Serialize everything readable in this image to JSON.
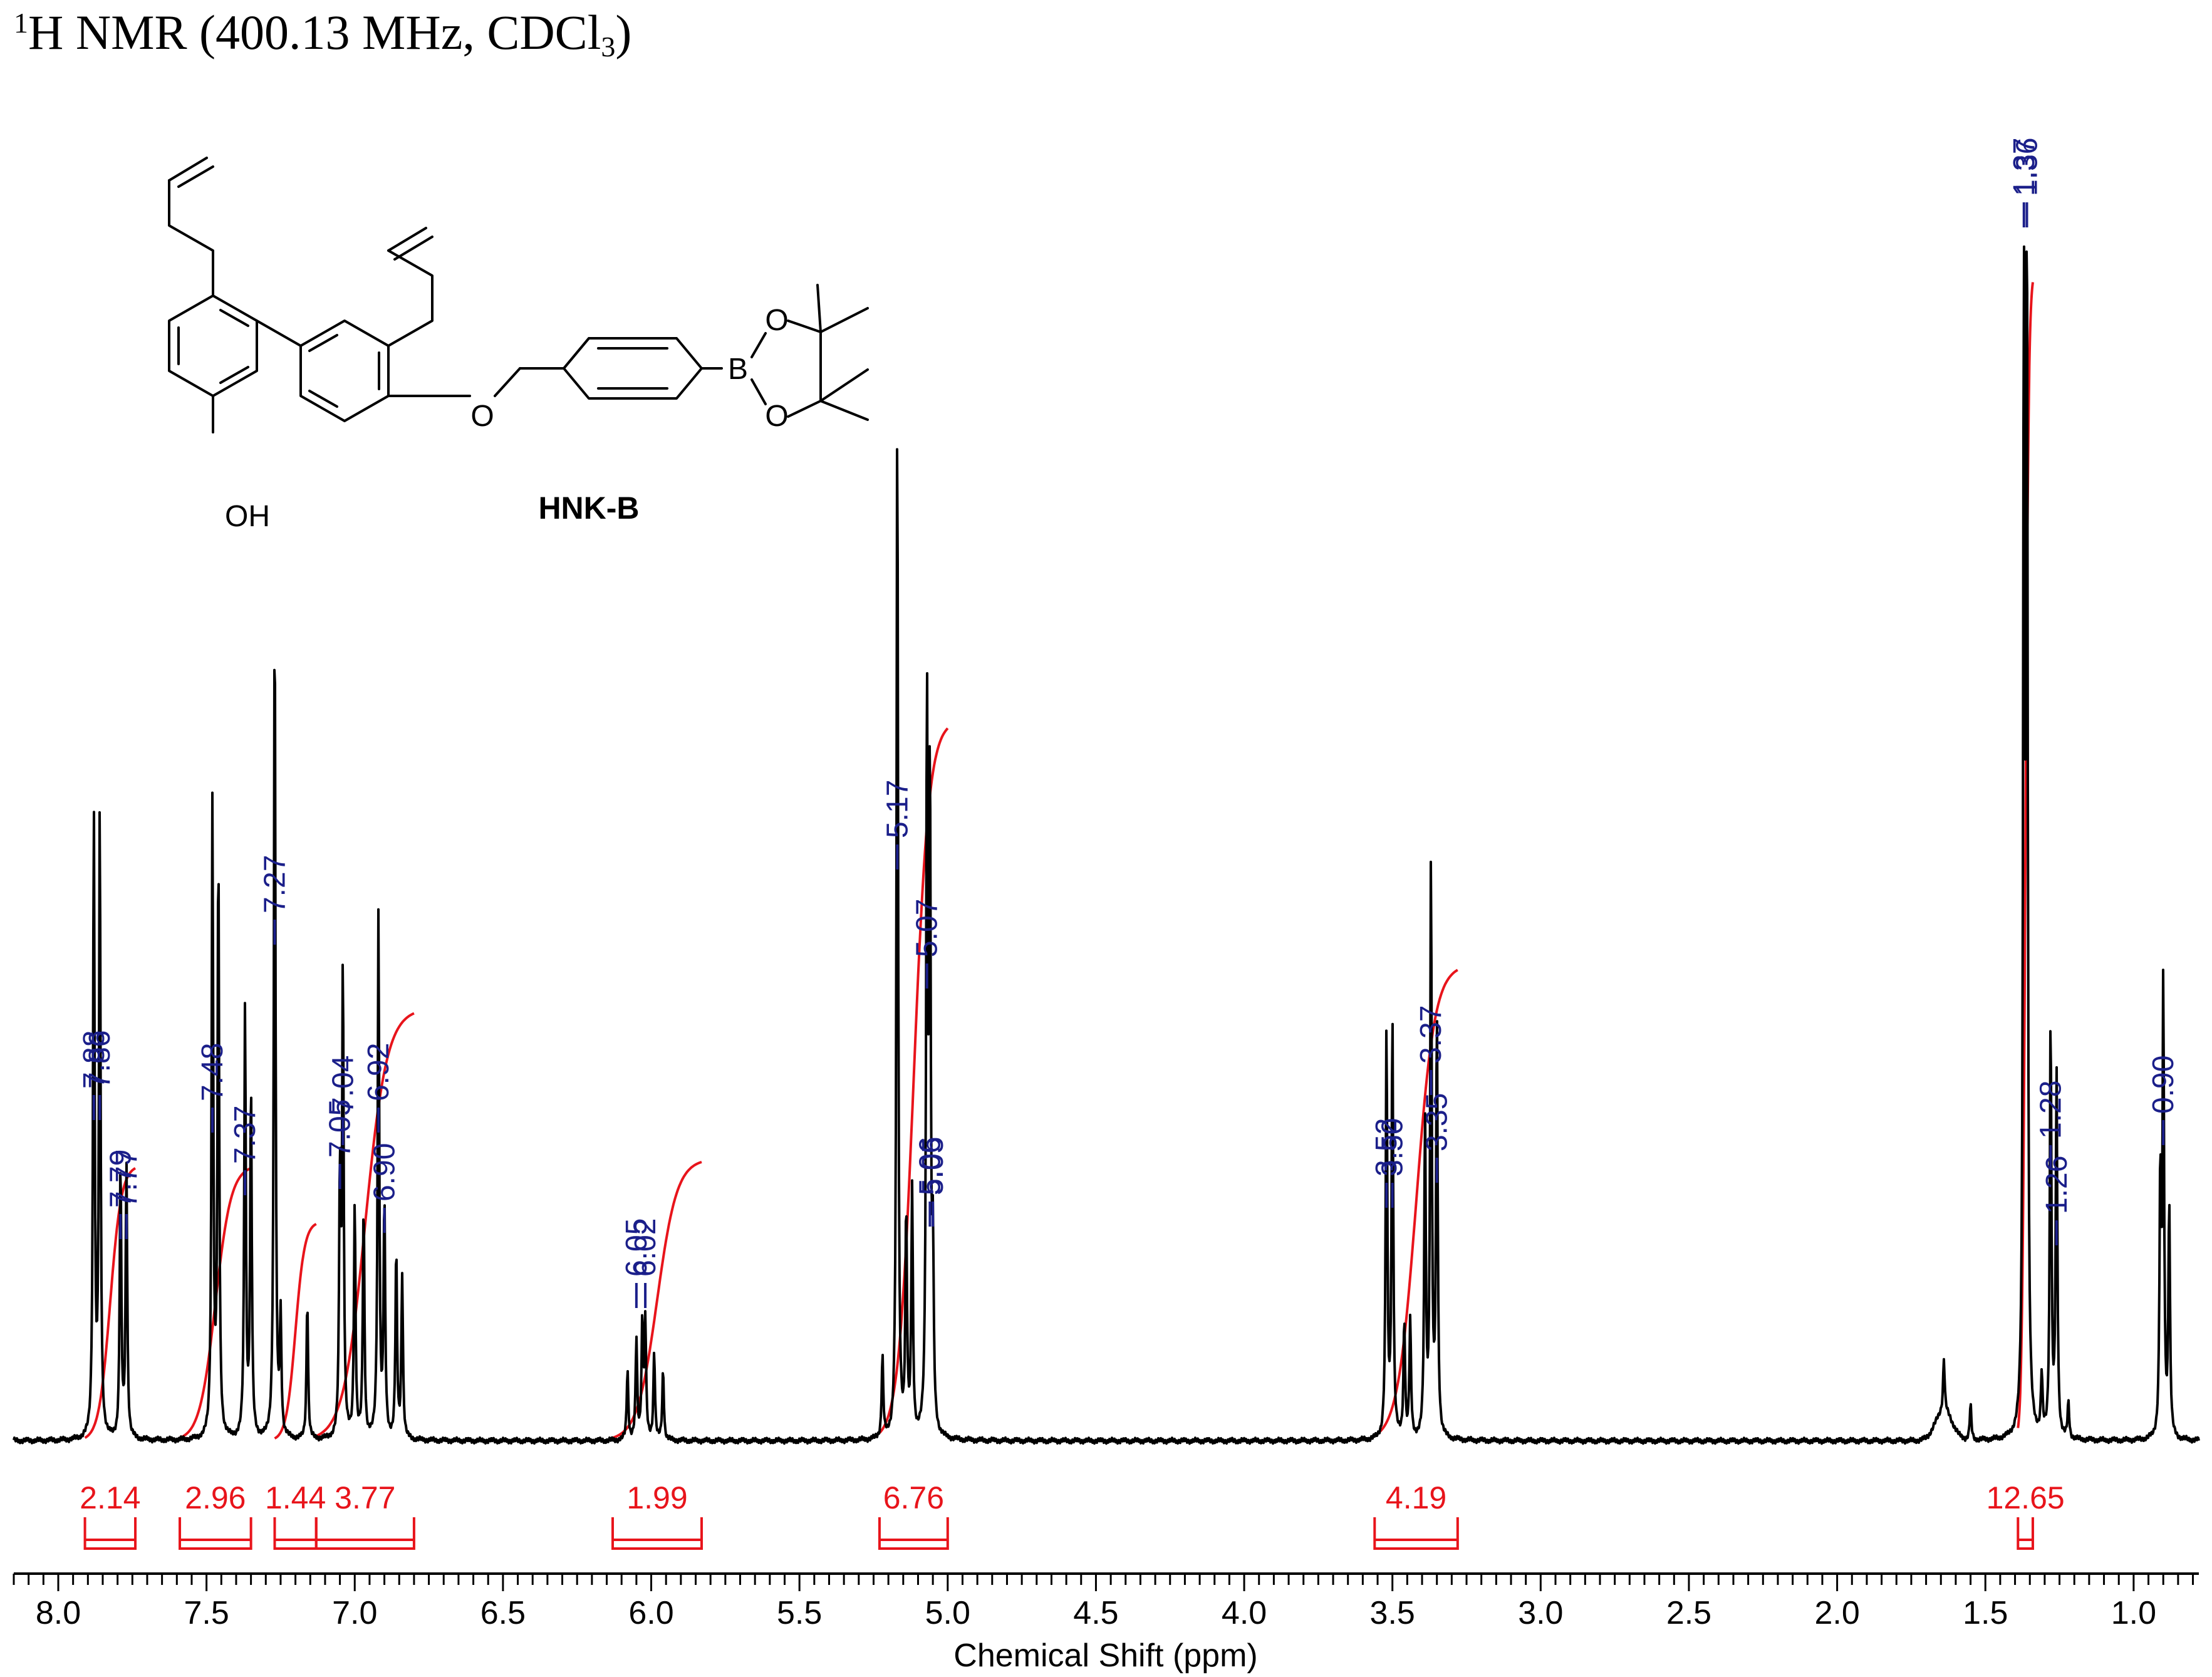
{
  "chart_data": {
    "type": "line",
    "title_parts": {
      "sup_1": "1",
      "main": "H NMR (400.13 MHz, CDCl",
      "sub_3": "3",
      "close": ")"
    },
    "xlabel": "Chemical Shift (ppm)",
    "xlim": [
      8.15,
      0.78
    ],
    "x_reversed": true,
    "x_ticks": [
      "8.0",
      "7.5",
      "7.0",
      "6.5",
      "6.0",
      "5.5",
      "5.0",
      "4.5",
      "4.0",
      "3.5",
      "3.0",
      "2.5",
      "2.0",
      "1.5",
      "1.0"
    ],
    "compound": {
      "name": "HNK-B",
      "atoms": {
        "oh": "OH",
        "o_ether": "O",
        "b": "B",
        "o_up": "O",
        "o_down": "O"
      }
    },
    "peaks": [
      {
        "ppm": 7.88,
        "label": "7.88",
        "height": 0.535
      },
      {
        "ppm": 7.86,
        "label": "7.86",
        "height": 0.535
      },
      {
        "ppm": 7.79,
        "label": "7.79",
        "height": 0.235
      },
      {
        "ppm": 7.77,
        "label": "7.77",
        "height": 0.235
      },
      {
        "ppm": 7.48,
        "label": "7.48",
        "height": 0.545
      },
      {
        "ppm": 7.46,
        "label": "",
        "height": 0.5
      },
      {
        "ppm": 7.37,
        "label": "7.37",
        "height": 0.37
      },
      {
        "ppm": 7.35,
        "label": "",
        "height": 0.3
      },
      {
        "ppm": 7.27,
        "label": "7.27",
        "height": 0.72
      },
      {
        "ppm": 7.25,
        "label": "",
        "height": 0.1
      },
      {
        "ppm": 7.16,
        "label": "",
        "height": 0.12
      },
      {
        "ppm": 7.05,
        "label": "7.05",
        "height": 0.22
      },
      {
        "ppm": 7.04,
        "label": "7.04",
        "height": 0.4
      },
      {
        "ppm": 7.0,
        "label": "",
        "height": 0.2
      },
      {
        "ppm": 6.97,
        "label": "",
        "height": 0.2
      },
      {
        "ppm": 6.92,
        "label": "6.92",
        "height": 0.45
      },
      {
        "ppm": 6.9,
        "label": "6.90",
        "height": 0.2
      },
      {
        "ppm": 6.86,
        "label": "",
        "height": 0.16
      },
      {
        "ppm": 6.84,
        "label": "",
        "height": 0.14
      },
      {
        "ppm": 6.08,
        "label": "",
        "height": 0.06
      },
      {
        "ppm": 6.05,
        "label": "6.05",
        "height": 0.085
      },
      {
        "ppm": 6.03,
        "label": "",
        "height": 0.1
      },
      {
        "ppm": 6.02,
        "label": "6.02",
        "height": 0.1
      },
      {
        "ppm": 5.99,
        "label": "",
        "height": 0.075
      },
      {
        "ppm": 5.96,
        "label": "",
        "height": 0.06
      },
      {
        "ppm": 5.22,
        "label": "",
        "height": 0.07
      },
      {
        "ppm": 5.17,
        "label": "5.17",
        "height": 0.885
      },
      {
        "ppm": 5.14,
        "label": "",
        "height": 0.19
      },
      {
        "ppm": 5.12,
        "label": "",
        "height": 0.21
      },
      {
        "ppm": 5.07,
        "label": "5.07",
        "height": 0.62
      },
      {
        "ppm": 5.06,
        "label": "5.06",
        "height": 0.55
      },
      {
        "ppm": 5.05,
        "label": "5.05",
        "height": 0.14
      },
      {
        "ppm": 3.52,
        "label": "3.52",
        "height": 0.35
      },
      {
        "ppm": 3.5,
        "label": "3.50",
        "height": 0.36
      },
      {
        "ppm": 3.46,
        "label": "",
        "height": 0.1
      },
      {
        "ppm": 3.44,
        "label": "",
        "height": 0.1
      },
      {
        "ppm": 3.39,
        "label": "",
        "height": 0.27
      },
      {
        "ppm": 3.37,
        "label": "3.37",
        "height": 0.49
      },
      {
        "ppm": 3.35,
        "label": "3.35",
        "height": 0.36
      },
      {
        "ppm": 1.64,
        "label": "",
        "height": 0.045
      },
      {
        "ppm": 1.55,
        "label": "",
        "height": 0.03
      },
      {
        "ppm": 1.37,
        "label": "1.37",
        "height": 1.0
      },
      {
        "ppm": 1.36,
        "label": "1.36",
        "height": 1.0
      },
      {
        "ppm": 1.31,
        "label": "",
        "height": 0.05
      },
      {
        "ppm": 1.28,
        "label": "1.28",
        "height": 0.36
      },
      {
        "ppm": 1.26,
        "label": "1.26",
        "height": 0.31
      },
      {
        "ppm": 1.22,
        "label": "",
        "height": 0.03
      },
      {
        "ppm": 0.91,
        "label": "",
        "height": 0.22
      },
      {
        "ppm": 0.9,
        "label": "0.90",
        "height": 0.38
      },
      {
        "ppm": 0.88,
        "label": "",
        "height": 0.2
      }
    ],
    "integrals": [
      {
        "from": 7.91,
        "to": 7.74,
        "value": "2.14"
      },
      {
        "from": 7.59,
        "to": 7.35,
        "value": "2.96"
      },
      {
        "from": 7.27,
        "to": 7.13,
        "value": "1.44"
      },
      {
        "from": 7.13,
        "to": 6.8,
        "value": "3.77"
      },
      {
        "from": 6.13,
        "to": 5.83,
        "value": "1.99"
      },
      {
        "from": 5.23,
        "to": 5.0,
        "value": "6.76"
      },
      {
        "from": 3.56,
        "to": 3.28,
        "value": "4.19"
      },
      {
        "from": 1.39,
        "to": 1.34,
        "value": "12.65"
      }
    ],
    "grid": false,
    "legend": "none"
  }
}
